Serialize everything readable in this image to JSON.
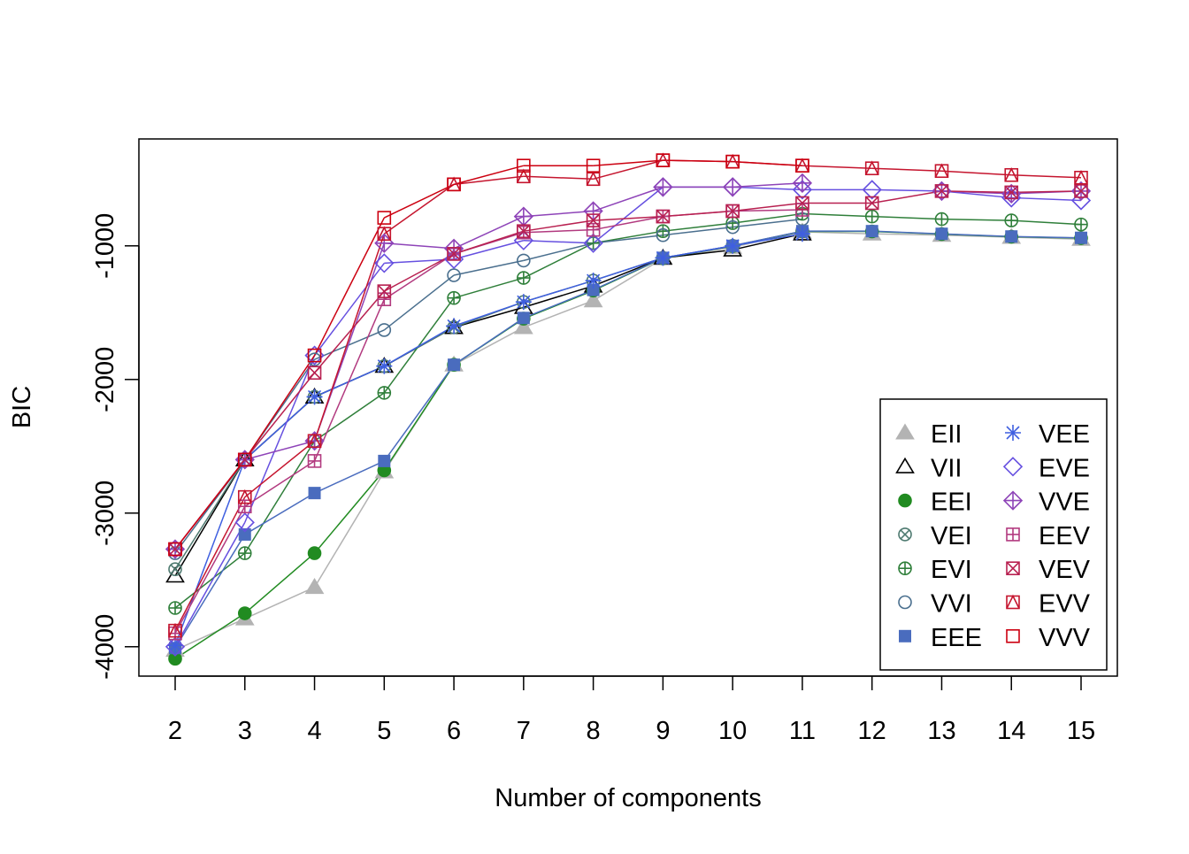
{
  "chart_data": {
    "type": "line",
    "title": "",
    "xlabel": "Number of components",
    "ylabel": "BIC",
    "x": [
      2,
      3,
      4,
      5,
      6,
      7,
      8,
      9,
      10,
      11,
      12,
      13,
      14,
      15
    ],
    "xlim": [
      2,
      15
    ],
    "ylim": [
      -4220,
      -200
    ],
    "yticks": [
      -4000,
      -3000,
      -2000,
      -1000
    ],
    "grid": false,
    "legend_position": "bottom-right",
    "series": [
      {
        "name": "EII",
        "symbol": "filled-triangle",
        "color": "#B3B3B3",
        "values": [
          -4025,
          -3790,
          -3555,
          -2690,
          -1890,
          -1610,
          -1410,
          -1095,
          -1010,
          -895,
          -910,
          -920,
          -935,
          -950
        ]
      },
      {
        "name": "VII",
        "symbol": "open-triangle",
        "color": "#000000",
        "values": [
          -3470,
          -2600,
          -2130,
          -1900,
          -1610,
          -1460,
          -1300,
          -1090,
          -1030,
          -910,
          null,
          null,
          null,
          null
        ]
      },
      {
        "name": "EEI",
        "symbol": "filled-circle",
        "color": "#218B21",
        "values": [
          -4090,
          -3750,
          -3300,
          -2680,
          -1890,
          -1545,
          -1335,
          -1092,
          -1002,
          -892,
          -892,
          -912,
          -932,
          -942
        ]
      },
      {
        "name": "VEI",
        "symbol": "circle-x",
        "color": "#4E7A70",
        "values": [
          -3420,
          -2600,
          -2130,
          -1900,
          -1610,
          -1420,
          -1260,
          -1090,
          -1000,
          -890,
          null,
          null,
          null,
          null
        ]
      },
      {
        "name": "EVI",
        "symbol": "circle-plus",
        "color": "#2F7F3A",
        "values": [
          -3710,
          -3300,
          -2460,
          -2100,
          -1390,
          -1240,
          -980,
          -890,
          -830,
          -760,
          -780,
          -800,
          -810,
          -840
        ]
      },
      {
        "name": "VVI",
        "symbol": "open-circle",
        "color": "#4A6F8E",
        "values": [
          -3300,
          -2600,
          -1850,
          -1630,
          -1220,
          -1110,
          -980,
          -920,
          -860,
          -800,
          null,
          null,
          null,
          null
        ]
      },
      {
        "name": "EEE",
        "symbol": "filled-square",
        "color": "#4A6CBE",
        "values": [
          -4010,
          -3160,
          -2850,
          -2610,
          -1890,
          -1540,
          -1330,
          -1090,
          -1000,
          -890,
          -890,
          -910,
          -930,
          -940
        ]
      },
      {
        "name": "VEE",
        "symbol": "asterisk",
        "color": "#3F5FE0",
        "values": [
          -3990,
          -2600,
          -2130,
          -1900,
          -1600,
          -1420,
          -1260,
          -1090,
          -1000,
          -910,
          null,
          null,
          null,
          null
        ]
      },
      {
        "name": "EVE",
        "symbol": "open-diamond",
        "color": "#6650E0",
        "values": [
          -4000,
          -3070,
          -1820,
          -1130,
          -1100,
          -960,
          -980,
          -560,
          -560,
          -580,
          -580,
          -590,
          -640,
          -660
        ]
      },
      {
        "name": "VVE",
        "symbol": "diamond-plus",
        "color": "#8E44B8",
        "values": [
          -3270,
          -2600,
          -2460,
          -980,
          -1020,
          -780,
          -740,
          -560,
          -560,
          -530,
          null,
          -590,
          -610,
          -590
        ]
      },
      {
        "name": "EEV",
        "symbol": "square-plus",
        "color": "#B23A7F",
        "values": [
          -3900,
          -2950,
          -2610,
          -1400,
          -1060,
          -900,
          -880,
          -780,
          -740,
          -730,
          null,
          null,
          null,
          null
        ]
      },
      {
        "name": "VEV",
        "symbol": "square-x",
        "color": "#B82050",
        "values": [
          -3270,
          -2600,
          -1950,
          -1340,
          -1060,
          -890,
          -810,
          -780,
          -740,
          -680,
          -680,
          -590,
          -600,
          -590
        ]
      },
      {
        "name": "EVV",
        "symbol": "square-triangle",
        "color": "#C5152E",
        "values": [
          -3880,
          -2880,
          -2460,
          -910,
          -540,
          -480,
          -500,
          -360,
          -370,
          -400,
          -420,
          -440,
          -470,
          -490
        ]
      },
      {
        "name": "VVV",
        "symbol": "open-square",
        "color": "#CC0010",
        "values": [
          -3270,
          -2600,
          -1820,
          -790,
          -540,
          -400,
          -400,
          -360,
          -370,
          -400,
          null,
          null,
          null,
          null
        ]
      }
    ]
  }
}
